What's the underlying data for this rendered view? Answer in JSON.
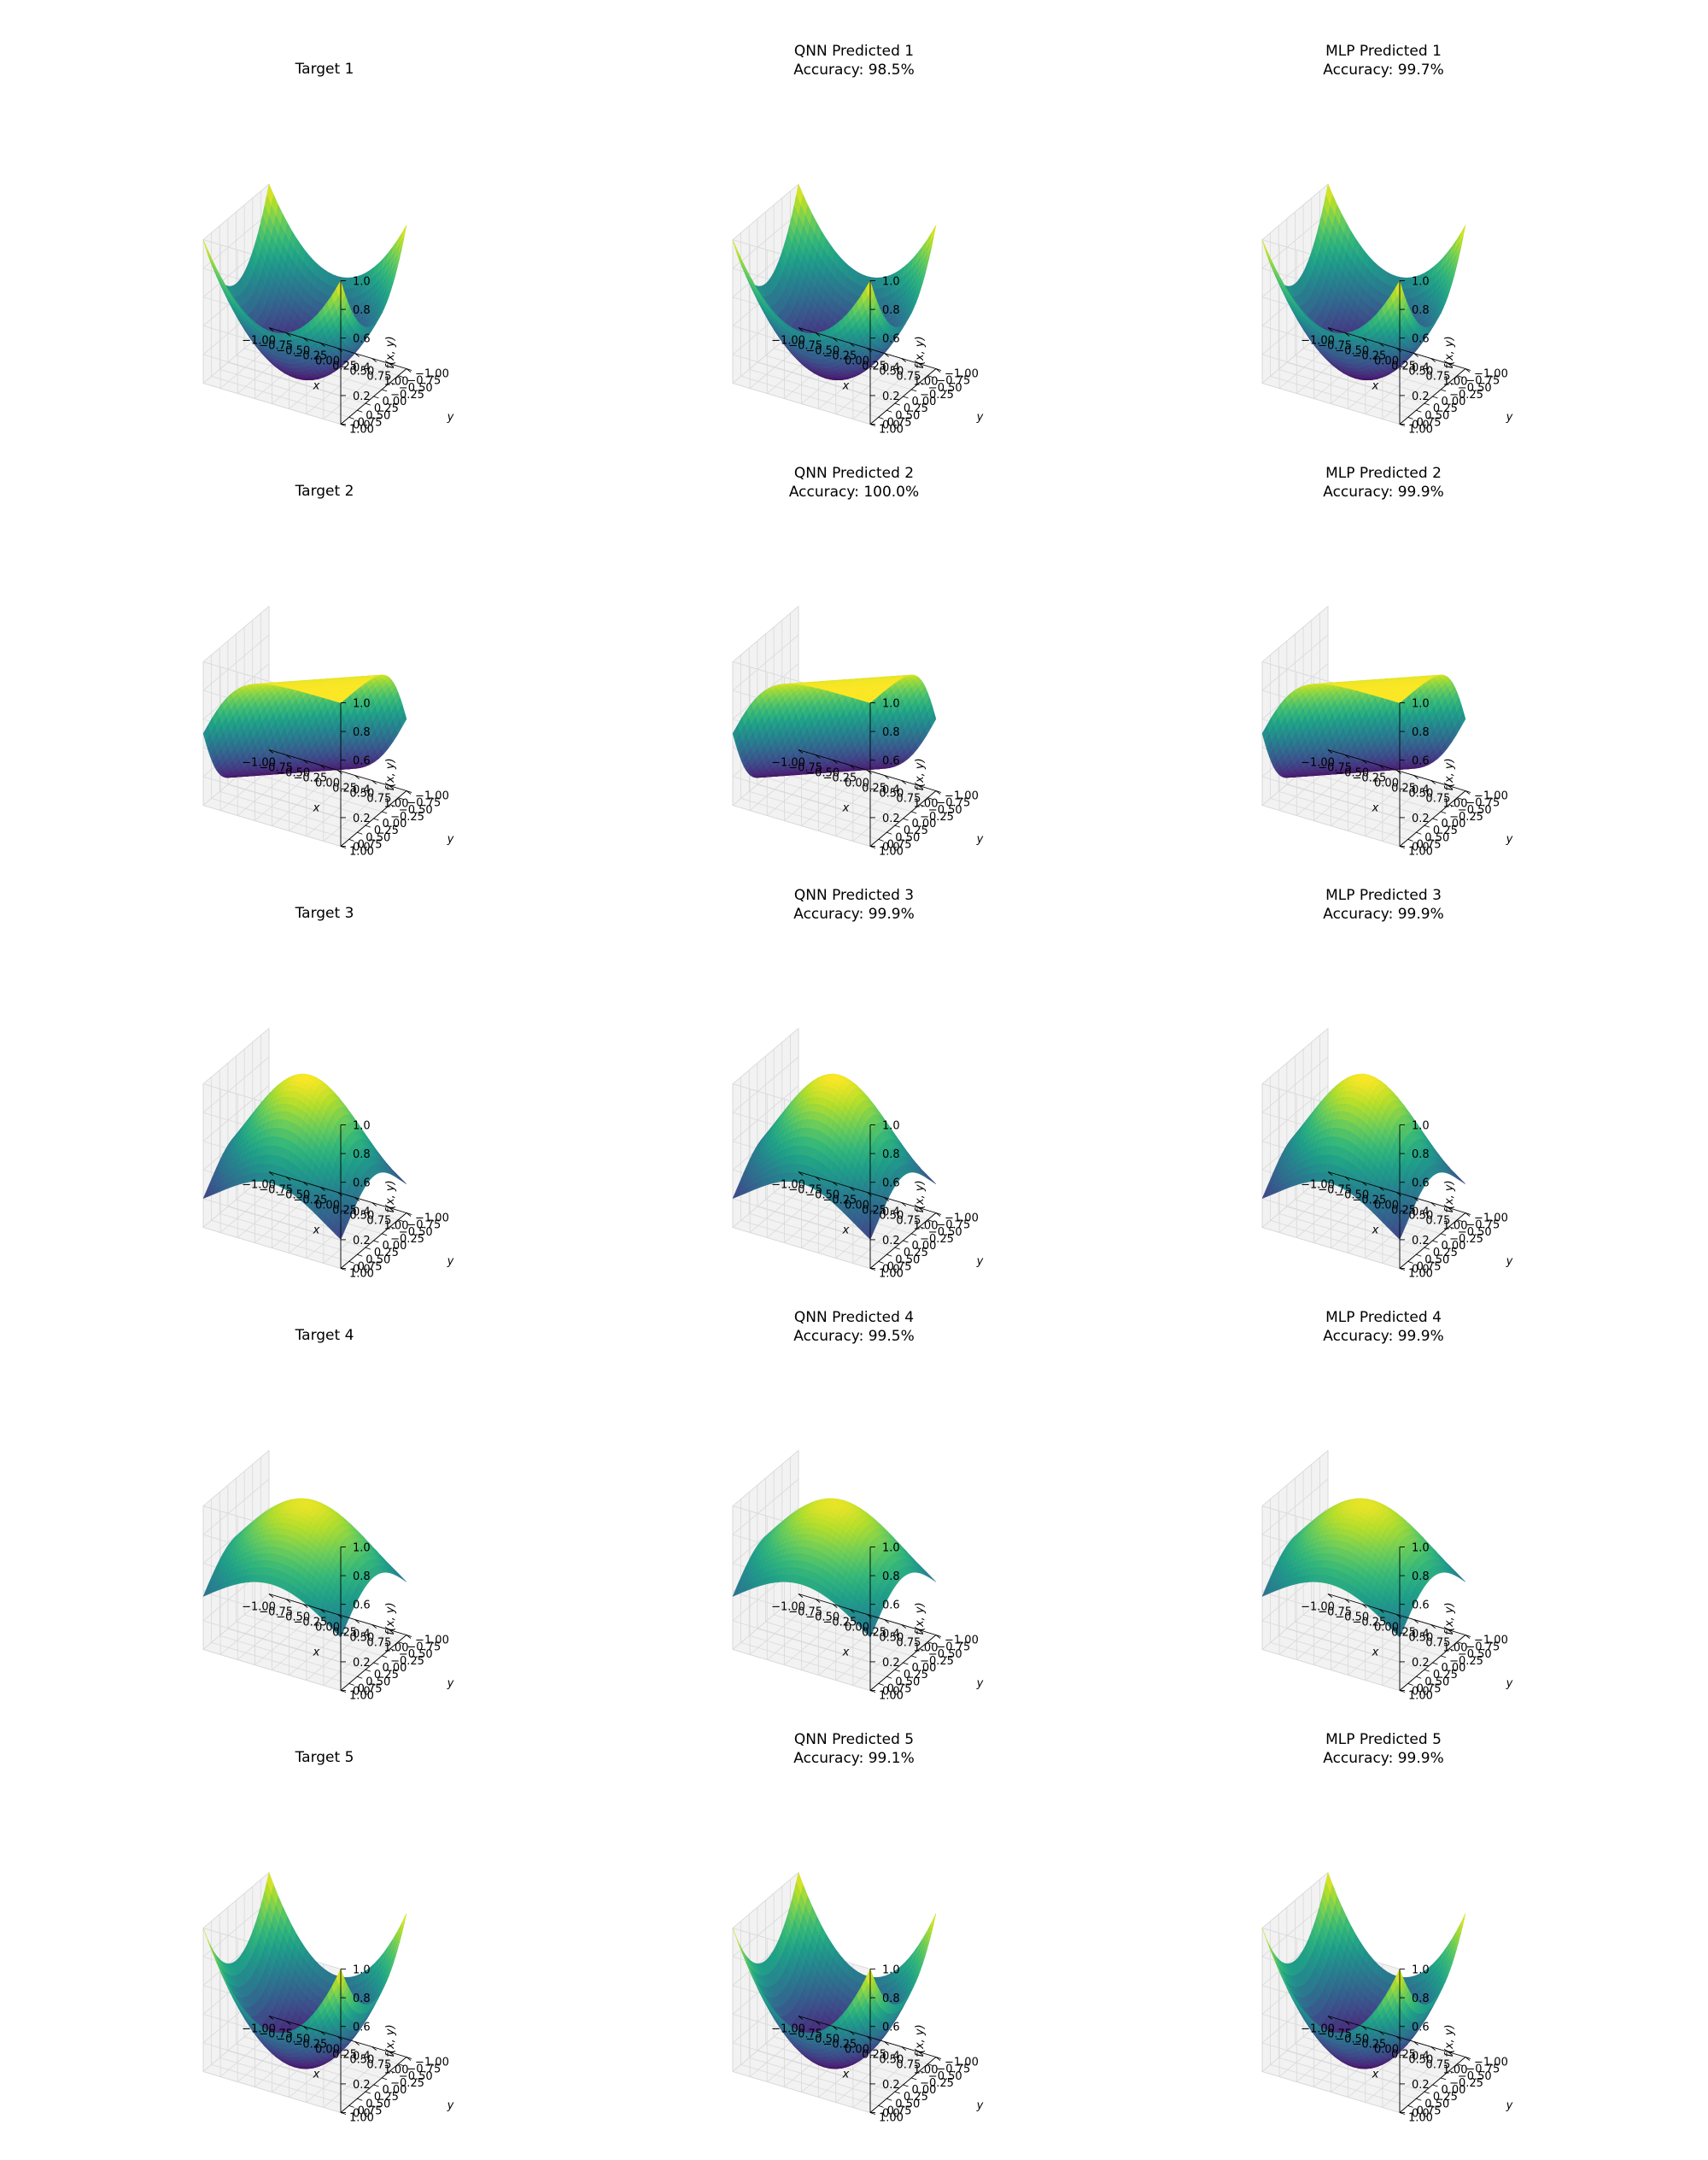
{
  "figure": {
    "colormap": "viridis",
    "pane_color": "#f2f2f2",
    "grid_color": "#d9d9d9"
  },
  "chart_data": [
    {
      "type": "surface",
      "title": "Target 1",
      "subtitle": "",
      "function": "bowl",
      "xlabel": "x",
      "ylabel": "y",
      "zlabel": "f(x, y)",
      "xlim": [
        -1,
        1
      ],
      "ylim": [
        -1,
        1
      ],
      "zlim": [
        0,
        1
      ],
      "xticks": [
        "−1.00",
        "−0.75",
        "−0.50",
        "−0.25",
        "0.00",
        "0.25",
        "0.50",
        "0.75",
        "1.00"
      ],
      "yticks": [
        "−1.00",
        "−0.75",
        "−0.50",
        "−0.25",
        "0.00",
        "0.25",
        "0.50",
        "0.75",
        "1.00"
      ],
      "zticks": [
        "0.0",
        "0.2",
        "0.4",
        "0.6",
        "0.8",
        "1.0"
      ],
      "grid": true
    },
    {
      "type": "surface",
      "title": "QNN Predicted 1",
      "subtitle": "Accuracy: 98.5%",
      "function": "bowl",
      "xlabel": "x",
      "ylabel": "y",
      "zlabel": "f(x, y)",
      "xlim": [
        -1,
        1
      ],
      "ylim": [
        -1,
        1
      ],
      "zlim": [
        0,
        1
      ],
      "xticks": [
        "−1.00",
        "−0.75",
        "−0.50",
        "−0.25",
        "0.00",
        "0.25",
        "0.50",
        "0.75",
        "1.00"
      ],
      "yticks": [
        "−1.00",
        "−0.75",
        "−0.50",
        "−0.25",
        "0.00",
        "0.25",
        "0.50",
        "0.75",
        "1.00"
      ],
      "zticks": [
        "0.0",
        "0.2",
        "0.4",
        "0.6",
        "0.8",
        "1.0"
      ],
      "grid": true
    },
    {
      "type": "surface",
      "title": "MLP Predicted 1",
      "subtitle": "Accuracy: 99.7%",
      "function": "bowl",
      "xlabel": "x",
      "ylabel": "y",
      "zlabel": "f(x, y)",
      "xlim": [
        -1,
        1
      ],
      "ylim": [
        -1,
        1
      ],
      "zlim": [
        0,
        1
      ],
      "xticks": [
        "−1.00",
        "−0.75",
        "−0.50",
        "−0.25",
        "0.00",
        "0.25",
        "0.50",
        "0.75",
        "1.00"
      ],
      "yticks": [
        "−1.00",
        "−0.75",
        "−0.50",
        "−0.25",
        "0.00",
        "0.25",
        "0.50",
        "0.75",
        "1.00"
      ],
      "zticks": [
        "0.0",
        "0.2",
        "0.4",
        "0.6",
        "0.8",
        "1.0"
      ],
      "grid": true
    },
    {
      "type": "surface",
      "title": "Target 2",
      "subtitle": "",
      "function": "sigmoid",
      "xlabel": "x",
      "ylabel": "y",
      "zlabel": "f(x, y)",
      "xlim": [
        -1,
        1
      ],
      "ylim": [
        -1,
        1
      ],
      "zlim": [
        0,
        1
      ],
      "xticks": [
        "−1.00",
        "−0.75",
        "−0.50",
        "−0.25",
        "0.00",
        "0.25",
        "0.50",
        "0.75",
        "1.00"
      ],
      "yticks": [
        "−1.00",
        "−0.75",
        "−0.50",
        "−0.25",
        "0.00",
        "0.25",
        "0.50",
        "0.75",
        "1.00"
      ],
      "zticks": [
        "0.0",
        "0.2",
        "0.4",
        "0.6",
        "0.8",
        "1.0"
      ],
      "grid": true
    },
    {
      "type": "surface",
      "title": "QNN Predicted 2",
      "subtitle": "Accuracy: 100.0%",
      "function": "sigmoid",
      "xlabel": "x",
      "ylabel": "y",
      "zlabel": "f(x, y)",
      "xlim": [
        -1,
        1
      ],
      "ylim": [
        -1,
        1
      ],
      "zlim": [
        0,
        1
      ],
      "xticks": [
        "−1.00",
        "−0.75",
        "−0.50",
        "−0.25",
        "0.00",
        "0.25",
        "0.50",
        "0.75",
        "1.00"
      ],
      "yticks": [
        "−1.00",
        "−0.75",
        "−0.50",
        "−0.25",
        "0.00",
        "0.25",
        "0.50",
        "0.75",
        "1.00"
      ],
      "zticks": [
        "0.0",
        "0.2",
        "0.4",
        "0.6",
        "0.8",
        "1.0"
      ],
      "grid": true
    },
    {
      "type": "surface",
      "title": "MLP Predicted 2",
      "subtitle": "Accuracy: 99.9%",
      "function": "sigmoid",
      "xlabel": "x",
      "ylabel": "y",
      "zlabel": "f(x, y)",
      "xlim": [
        -1,
        1
      ],
      "ylim": [
        -1,
        1
      ],
      "zlim": [
        0,
        1
      ],
      "xticks": [
        "−1.00",
        "−0.75",
        "−0.50",
        "−0.25",
        "0.00",
        "0.25",
        "0.50",
        "0.75",
        "1.00"
      ],
      "yticks": [
        "−1.00",
        "−0.75",
        "−0.50",
        "−0.25",
        "0.00",
        "0.25",
        "0.50",
        "0.75",
        "1.00"
      ],
      "zticks": [
        "0.0",
        "0.2",
        "0.4",
        "0.6",
        "0.8",
        "1.0"
      ],
      "grid": true
    },
    {
      "type": "surface",
      "title": "Target 3",
      "subtitle": "",
      "function": "dome",
      "xlabel": "x",
      "ylabel": "y",
      "zlabel": "f(x, y)",
      "xlim": [
        -1,
        1
      ],
      "ylim": [
        -1,
        1
      ],
      "zlim": [
        0,
        1
      ],
      "xticks": [
        "−1.00",
        "−0.75",
        "−0.50",
        "−0.25",
        "0.00",
        "0.25",
        "0.50",
        "0.75",
        "1.00"
      ],
      "yticks": [
        "−1.00",
        "−0.75",
        "−0.50",
        "−0.25",
        "0.00",
        "0.25",
        "0.50",
        "0.75",
        "1.00"
      ],
      "zticks": [
        "0.0",
        "0.2",
        "0.4",
        "0.6",
        "0.8",
        "1.0"
      ],
      "grid": true
    },
    {
      "type": "surface",
      "title": "QNN Predicted 3",
      "subtitle": "Accuracy: 99.9%",
      "function": "dome",
      "xlabel": "x",
      "ylabel": "y",
      "zlabel": "f(x, y)",
      "xlim": [
        -1,
        1
      ],
      "ylim": [
        -1,
        1
      ],
      "zlim": [
        0,
        1
      ],
      "xticks": [
        "−1.00",
        "−0.75",
        "−0.50",
        "−0.25",
        "0.00",
        "0.25",
        "0.50",
        "0.75",
        "1.00"
      ],
      "yticks": [
        "−1.00",
        "−0.75",
        "−0.50",
        "−0.25",
        "0.00",
        "0.25",
        "0.50",
        "0.75",
        "1.00"
      ],
      "zticks": [
        "0.0",
        "0.2",
        "0.4",
        "0.6",
        "0.8",
        "1.0"
      ],
      "grid": true
    },
    {
      "type": "surface",
      "title": "MLP Predicted 3",
      "subtitle": "Accuracy: 99.9%",
      "function": "dome",
      "xlabel": "x",
      "ylabel": "y",
      "zlabel": "f(x, y)",
      "xlim": [
        -1,
        1
      ],
      "ylim": [
        -1,
        1
      ],
      "zlim": [
        0,
        1
      ],
      "xticks": [
        "−1.00",
        "−0.75",
        "−0.50",
        "−0.25",
        "0.00",
        "0.25",
        "0.50",
        "0.75",
        "1.00"
      ],
      "yticks": [
        "−1.00",
        "−0.75",
        "−0.50",
        "−0.25",
        "0.00",
        "0.25",
        "0.50",
        "0.75",
        "1.00"
      ],
      "zticks": [
        "0.0",
        "0.2",
        "0.4",
        "0.6",
        "0.8",
        "1.0"
      ],
      "grid": true
    },
    {
      "type": "surface",
      "title": "Target 4",
      "subtitle": "",
      "function": "gaussian",
      "xlabel": "x",
      "ylabel": "y",
      "zlabel": "f(x, y)",
      "xlim": [
        -1,
        1
      ],
      "ylim": [
        -1,
        1
      ],
      "zlim": [
        0,
        1
      ],
      "xticks": [
        "−1.00",
        "−0.75",
        "−0.50",
        "−0.25",
        "0.00",
        "0.25",
        "0.50",
        "0.75",
        "1.00"
      ],
      "yticks": [
        "−1.00",
        "−0.75",
        "−0.50",
        "−0.25",
        "0.00",
        "0.25",
        "0.50",
        "0.75",
        "1.00"
      ],
      "zticks": [
        "0.0",
        "0.2",
        "0.4",
        "0.6",
        "0.8",
        "1.0"
      ],
      "grid": true
    },
    {
      "type": "surface",
      "title": "QNN Predicted 4",
      "subtitle": "Accuracy: 99.5%",
      "function": "gaussian",
      "xlabel": "x",
      "ylabel": "y",
      "zlabel": "f(x, y)",
      "xlim": [
        -1,
        1
      ],
      "ylim": [
        -1,
        1
      ],
      "zlim": [
        0,
        1
      ],
      "xticks": [
        "−1.00",
        "−0.75",
        "−0.50",
        "−0.25",
        "0.00",
        "0.25",
        "0.50",
        "0.75",
        "1.00"
      ],
      "yticks": [
        "−1.00",
        "−0.75",
        "−0.50",
        "−0.25",
        "0.00",
        "0.25",
        "0.50",
        "0.75",
        "1.00"
      ],
      "zticks": [
        "0.0",
        "0.2",
        "0.4",
        "0.6",
        "0.8",
        "1.0"
      ],
      "grid": true
    },
    {
      "type": "surface",
      "title": "MLP Predicted 4",
      "subtitle": "Accuracy: 99.9%",
      "function": "gaussian",
      "xlabel": "x",
      "ylabel": "y",
      "zlabel": "f(x, y)",
      "xlim": [
        -1,
        1
      ],
      "ylim": [
        -1,
        1
      ],
      "zlim": [
        0,
        1
      ],
      "xticks": [
        "−1.00",
        "−0.75",
        "−0.50",
        "−0.25",
        "0.00",
        "0.25",
        "0.50",
        "0.75",
        "1.00"
      ],
      "yticks": [
        "−1.00",
        "−0.75",
        "−0.50",
        "−0.25",
        "0.00",
        "0.25",
        "0.50",
        "0.75",
        "1.00"
      ],
      "zticks": [
        "0.0",
        "0.2",
        "0.4",
        "0.6",
        "0.8",
        "1.0"
      ],
      "grid": true
    },
    {
      "type": "surface",
      "title": "Target 5",
      "subtitle": "",
      "function": "saddle",
      "xlabel": "x",
      "ylabel": "y",
      "zlabel": "f(x, y)",
      "xlim": [
        -1,
        1
      ],
      "ylim": [
        -1,
        1
      ],
      "zlim": [
        0,
        1
      ],
      "xticks": [
        "−1.00",
        "−0.75",
        "−0.50",
        "−0.25",
        "0.00",
        "0.25",
        "0.50",
        "0.75",
        "1.00"
      ],
      "yticks": [
        "−1.00",
        "−0.75",
        "−0.50",
        "−0.25",
        "0.00",
        "0.25",
        "0.50",
        "0.75",
        "1.00"
      ],
      "zticks": [
        "0.0",
        "0.2",
        "0.4",
        "0.6",
        "0.8",
        "1.0"
      ],
      "grid": true
    },
    {
      "type": "surface",
      "title": "QNN Predicted 5",
      "subtitle": "Accuracy: 99.1%",
      "function": "saddle",
      "xlabel": "x",
      "ylabel": "y",
      "zlabel": "f(x, y)",
      "xlim": [
        -1,
        1
      ],
      "ylim": [
        -1,
        1
      ],
      "zlim": [
        0,
        1
      ],
      "xticks": [
        "−1.00",
        "−0.75",
        "−0.50",
        "−0.25",
        "0.00",
        "0.25",
        "0.50",
        "0.75",
        "1.00"
      ],
      "yticks": [
        "−1.00",
        "−0.75",
        "−0.50",
        "−0.25",
        "0.00",
        "0.25",
        "0.50",
        "0.75",
        "1.00"
      ],
      "zticks": [
        "0.0",
        "0.2",
        "0.4",
        "0.6",
        "0.8",
        "1.0"
      ],
      "grid": true
    },
    {
      "type": "surface",
      "title": "MLP Predicted 5",
      "subtitle": "Accuracy: 99.9%",
      "function": "saddle",
      "xlabel": "x",
      "ylabel": "y",
      "zlabel": "f(x, y)",
      "xlim": [
        -1,
        1
      ],
      "ylim": [
        -1,
        1
      ],
      "zlim": [
        0,
        1
      ],
      "xticks": [
        "−1.00",
        "−0.75",
        "−0.50",
        "−0.25",
        "0.00",
        "0.25",
        "0.50",
        "0.75",
        "1.00"
      ],
      "yticks": [
        "−1.00",
        "−0.75",
        "−0.50",
        "−0.25",
        "0.00",
        "0.25",
        "0.50",
        "0.75",
        "1.00"
      ],
      "zticks": [
        "0.0",
        "0.2",
        "0.4",
        "0.6",
        "0.8",
        "1.0"
      ],
      "grid": true
    }
  ]
}
